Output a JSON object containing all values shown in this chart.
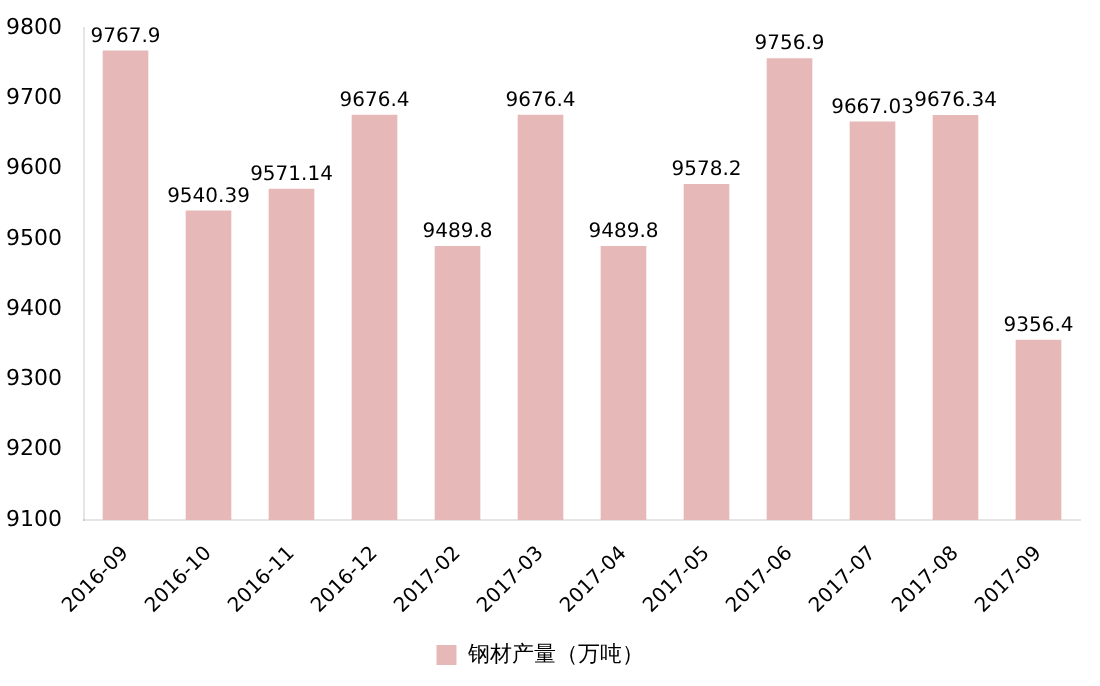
{
  "chart_data": {
    "type": "bar",
    "categories": [
      "2016-09",
      "2016-10",
      "2016-11",
      "2016-12",
      "2017-02",
      "2017-03",
      "2017-04",
      "2017-05",
      "2017-06",
      "2017-07",
      "2017-08",
      "2017-09"
    ],
    "series": [
      {
        "name": "钢材产量（万吨）",
        "color": "#e6b8b7",
        "values": [
          9767.9,
          9540.39,
          9571.14,
          9676.4,
          9489.8,
          9676.4,
          9489.8,
          9578.2,
          9756.9,
          9667.03,
          9676.34,
          9356.4
        ]
      }
    ],
    "ylim": [
      9100,
      9800
    ],
    "yticks": [
      9100,
      9200,
      9300,
      9400,
      9500,
      9600,
      9700,
      9800
    ],
    "grid": false,
    "legend": "bottom",
    "data_labels": true
  }
}
